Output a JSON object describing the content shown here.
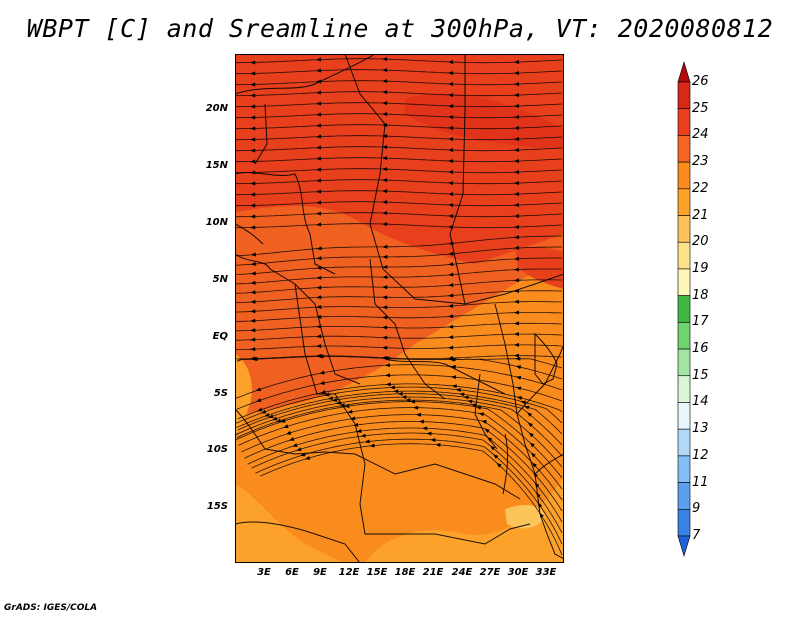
{
  "title": "WBPT [C] and Sreamline at 300hPa, VT: 2020080812",
  "footer": "GrADS: IGES/COLA",
  "map": {
    "lat_labels": [
      "20N",
      "15N",
      "10N",
      "5N",
      "EQ",
      "5S",
      "10S",
      "15S"
    ],
    "lon_labels": [
      "3E",
      "6E",
      "9E",
      "12E",
      "15E",
      "18E",
      "21E",
      "24E",
      "27E",
      "30E",
      "33E"
    ],
    "colors": {
      "c24": "#e8401c",
      "c23": "#f06020",
      "c22": "#fa8c1e",
      "c21": "#fcb030",
      "c25": "#d82818"
    }
  },
  "colorbar": {
    "labels": [
      "26",
      "25",
      "24",
      "23",
      "22",
      "21",
      "20",
      "19",
      "18",
      "17",
      "16",
      "15",
      "14",
      "13",
      "12",
      "11",
      "9",
      "7"
    ],
    "colors": [
      "#b40a0a",
      "#d82818",
      "#ea4020",
      "#f36522",
      "#fa8c1e",
      "#fca22a",
      "#fdc45a",
      "#fde28c",
      "#fdf6b8",
      "#3fb83f",
      "#6fd46f",
      "#a4e4a4",
      "#d8f6d8",
      "#e8f6fc",
      "#b2daf8",
      "#82bef4",
      "#5aa0ee",
      "#3a82e6",
      "#2060d8"
    ]
  }
}
